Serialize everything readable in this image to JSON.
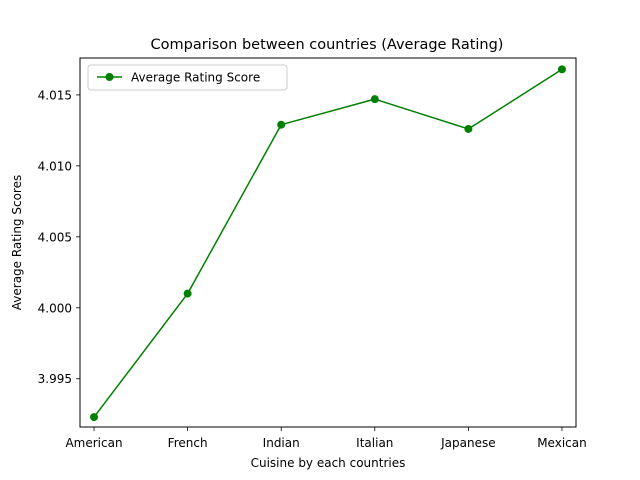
{
  "chart_data": {
    "type": "line",
    "title": "Comparison between countries (Average Rating)",
    "xlabel": "Cuisine by each countries",
    "ylabel": "Average Rating Scores",
    "categories": [
      "American",
      "French",
      "Indian",
      "Italian",
      "Japanese",
      "Mexican"
    ],
    "series": [
      {
        "name": "Average Rating Score",
        "values": [
          3.9923,
          4.001,
          4.0129,
          4.0147,
          4.0126,
          4.0168
        ],
        "color": "#008000",
        "marker": "circle"
      }
    ],
    "ylim": [
      3.9916,
      4.0176
    ],
    "yticks": [
      3.995,
      4.0,
      4.005,
      4.01,
      4.015
    ],
    "ytick_labels": [
      "3.995",
      "4.000",
      "4.005",
      "4.010",
      "4.015"
    ],
    "grid": false,
    "legend_position": "upper-left"
  }
}
